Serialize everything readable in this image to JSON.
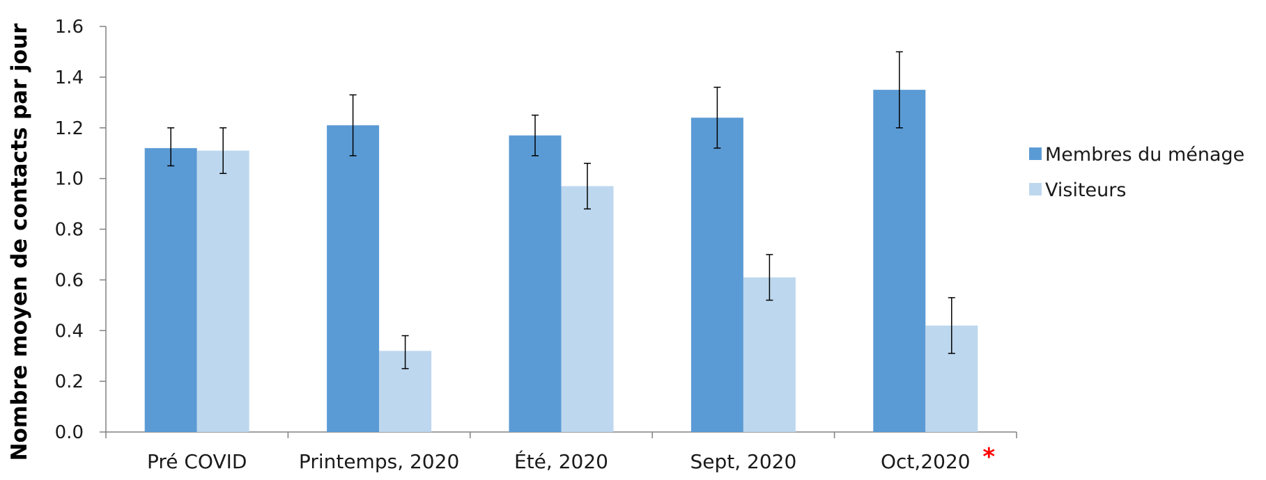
{
  "chart_data": {
    "type": "bar",
    "categories": [
      "Pré COVID",
      "Printemps, 2020",
      "Été, 2020",
      "Sept, 2020",
      "Oct,2020"
    ],
    "series": [
      {
        "name": "Membres du ménage",
        "values": [
          1.12,
          1.21,
          1.17,
          1.24,
          1.35
        ],
        "error_low": [
          1.05,
          1.09,
          1.09,
          1.12,
          1.2
        ],
        "error_high": [
          1.2,
          1.33,
          1.25,
          1.36,
          1.5
        ],
        "color": "#5b9bd5"
      },
      {
        "name": "Visiteurs",
        "values": [
          1.11,
          0.32,
          0.97,
          0.61,
          0.42
        ],
        "error_low": [
          1.02,
          0.25,
          0.88,
          0.52,
          0.31
        ],
        "error_high": [
          1.2,
          0.38,
          1.06,
          0.7,
          0.53
        ],
        "color": "#bdd7ee"
      }
    ],
    "ylabel": "Nombre moyen de contacts par jour",
    "xlabel": "",
    "ylim": [
      0,
      1.6
    ],
    "yticks": [
      "0.0",
      "0.2",
      "0.4",
      "0.6",
      "0.8",
      "1.0",
      "1.2",
      "1.4",
      "1.6"
    ],
    "grid": false,
    "legend_position": "right",
    "annotation": {
      "text": "*",
      "category": "Oct,2020",
      "color": "#ff0000"
    }
  }
}
